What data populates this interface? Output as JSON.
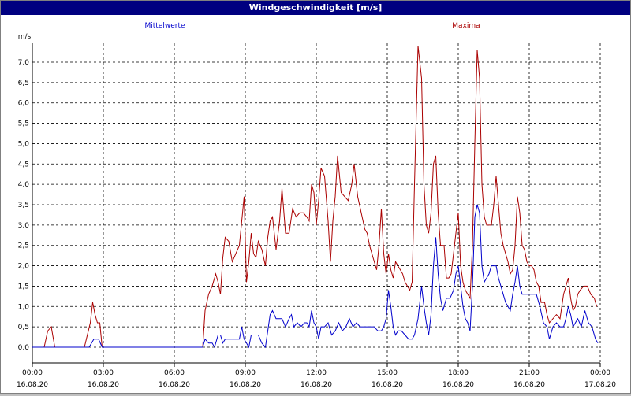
{
  "window": {
    "title": "Windgeschwindigkeit [m/s]"
  },
  "legend": {
    "mean_label": "Mittelwerte",
    "max_label": "Maxima"
  },
  "colors": {
    "mean": "#0000cc",
    "max": "#aa0000",
    "grid": "#000000",
    "title_bg": "#000080"
  },
  "chart_data": {
    "type": "line",
    "title": "Windgeschwindigkeit [m/s]",
    "ylabel": "m/s",
    "ylim": [
      0,
      7.5
    ],
    "xlim_hours": [
      0,
      24
    ],
    "grid": true,
    "legend_position": "top",
    "y_ticks": [
      "0,0",
      "0,5",
      "1,0",
      "1,5",
      "2,0",
      "2,5",
      "3,0",
      "3,5",
      "4,0",
      "4,5",
      "5,0",
      "5,5",
      "6,0",
      "6,5",
      "7,0"
    ],
    "x_ticks": [
      {
        "time": "00:00",
        "date": "16.08.20"
      },
      {
        "time": "03:00",
        "date": "16.08.20"
      },
      {
        "time": "06:00",
        "date": "16.08.20"
      },
      {
        "time": "09:00",
        "date": "16.08.20"
      },
      {
        "time": "12:00",
        "date": "16.08.20"
      },
      {
        "time": "15:00",
        "date": "16.08.20"
      },
      {
        "time": "18:00",
        "date": "16.08.20"
      },
      {
        "time": "21:00",
        "date": "16.08.20"
      },
      {
        "time": "00:00",
        "date": "17.08.20"
      }
    ],
    "series": [
      {
        "name": "Maxima",
        "color": "#aa0000",
        "points": [
          [
            0,
            0
          ],
          [
            0.5,
            0
          ],
          [
            0.65,
            0.4
          ],
          [
            0.8,
            0.5
          ],
          [
            0.95,
            0
          ],
          [
            2.2,
            0
          ],
          [
            2.45,
            0.6
          ],
          [
            2.55,
            1.1
          ],
          [
            2.65,
            0.8
          ],
          [
            2.75,
            0.6
          ],
          [
            2.85,
            0.6
          ],
          [
            2.95,
            0
          ],
          [
            7.2,
            0
          ],
          [
            7.3,
            0.9
          ],
          [
            7.45,
            1.3
          ],
          [
            7.6,
            1.5
          ],
          [
            7.75,
            1.8
          ],
          [
            7.85,
            1.6
          ],
          [
            7.95,
            1.3
          ],
          [
            8.05,
            2.2
          ],
          [
            8.15,
            2.7
          ],
          [
            8.3,
            2.6
          ],
          [
            8.45,
            2.1
          ],
          [
            8.6,
            2.3
          ],
          [
            8.75,
            2.5
          ],
          [
            8.85,
            3.1
          ],
          [
            8.95,
            3.7
          ],
          [
            9.05,
            1.6
          ],
          [
            9.15,
            2.1
          ],
          [
            9.25,
            2.8
          ],
          [
            9.35,
            2.3
          ],
          [
            9.45,
            2.2
          ],
          [
            9.55,
            2.6
          ],
          [
            9.7,
            2.4
          ],
          [
            9.85,
            2.0
          ],
          [
            9.95,
            2.7
          ],
          [
            10.05,
            3.1
          ],
          [
            10.15,
            3.2
          ],
          [
            10.3,
            2.4
          ],
          [
            10.45,
            3.1
          ],
          [
            10.55,
            3.9
          ],
          [
            10.7,
            2.8
          ],
          [
            10.85,
            2.8
          ],
          [
            11.0,
            3.4
          ],
          [
            11.15,
            3.2
          ],
          [
            11.3,
            3.3
          ],
          [
            11.45,
            3.3
          ],
          [
            11.6,
            3.2
          ],
          [
            11.7,
            3.1
          ],
          [
            11.8,
            4.0
          ],
          [
            11.9,
            3.8
          ],
          [
            12.0,
            3.0
          ],
          [
            12.1,
            3.6
          ],
          [
            12.2,
            4.4
          ],
          [
            12.35,
            4.2
          ],
          [
            12.5,
            3.1
          ],
          [
            12.6,
            2.1
          ],
          [
            12.7,
            3.1
          ],
          [
            12.8,
            3.7
          ],
          [
            12.9,
            4.7
          ],
          [
            13.05,
            3.8
          ],
          [
            13.2,
            3.7
          ],
          [
            13.35,
            3.6
          ],
          [
            13.5,
            4.0
          ],
          [
            13.6,
            4.5
          ],
          [
            13.75,
            3.7
          ],
          [
            13.9,
            3.3
          ],
          [
            14.05,
            2.9
          ],
          [
            14.15,
            2.8
          ],
          [
            14.25,
            2.5
          ],
          [
            14.35,
            2.3
          ],
          [
            14.45,
            2.1
          ],
          [
            14.55,
            1.9
          ],
          [
            14.65,
            2.5
          ],
          [
            14.75,
            3.4
          ],
          [
            14.85,
            2.3
          ],
          [
            14.95,
            1.8
          ],
          [
            15.05,
            2.3
          ],
          [
            15.15,
            1.9
          ],
          [
            15.25,
            1.7
          ],
          [
            15.35,
            2.1
          ],
          [
            15.45,
            2.0
          ],
          [
            15.55,
            1.9
          ],
          [
            15.65,
            1.8
          ],
          [
            15.75,
            1.6
          ],
          [
            15.85,
            1.5
          ],
          [
            15.95,
            1.4
          ],
          [
            16.05,
            1.6
          ],
          [
            16.15,
            4.0
          ],
          [
            16.3,
            7.4
          ],
          [
            16.45,
            6.6
          ],
          [
            16.55,
            4.0
          ],
          [
            16.65,
            3.0
          ],
          [
            16.75,
            2.8
          ],
          [
            16.85,
            3.3
          ],
          [
            16.95,
            4.5
          ],
          [
            17.05,
            4.7
          ],
          [
            17.15,
            3.3
          ],
          [
            17.25,
            2.5
          ],
          [
            17.4,
            2.5
          ],
          [
            17.5,
            1.7
          ],
          [
            17.6,
            1.7
          ],
          [
            17.7,
            1.8
          ],
          [
            17.8,
            2.3
          ],
          [
            17.9,
            2.8
          ],
          [
            18.0,
            3.3
          ],
          [
            18.1,
            2.0
          ],
          [
            18.2,
            1.6
          ],
          [
            18.3,
            1.4
          ],
          [
            18.4,
            1.3
          ],
          [
            18.5,
            1.2
          ],
          [
            18.6,
            2.5
          ],
          [
            18.7,
            5.0
          ],
          [
            18.8,
            7.3
          ],
          [
            18.9,
            6.6
          ],
          [
            19.0,
            4.0
          ],
          [
            19.1,
            3.2
          ],
          [
            19.2,
            3.0
          ],
          [
            19.3,
            3.0
          ],
          [
            19.4,
            3.0
          ],
          [
            19.5,
            3.5
          ],
          [
            19.6,
            4.2
          ],
          [
            19.7,
            3.5
          ],
          [
            19.8,
            2.8
          ],
          [
            19.9,
            2.5
          ],
          [
            20.0,
            2.3
          ],
          [
            20.1,
            2.1
          ],
          [
            20.2,
            1.8
          ],
          [
            20.3,
            1.9
          ],
          [
            20.4,
            2.5
          ],
          [
            20.5,
            3.7
          ],
          [
            20.6,
            3.3
          ],
          [
            20.7,
            2.5
          ],
          [
            20.8,
            2.4
          ],
          [
            20.9,
            2.1
          ],
          [
            21.0,
            2.0
          ],
          [
            21.1,
            2.0
          ],
          [
            21.2,
            1.9
          ],
          [
            21.3,
            1.6
          ],
          [
            21.4,
            1.5
          ],
          [
            21.5,
            1.1
          ],
          [
            21.65,
            1.1
          ],
          [
            21.75,
            0.8
          ],
          [
            21.85,
            0.6
          ],
          [
            22.0,
            0.7
          ],
          [
            22.15,
            0.8
          ],
          [
            22.3,
            0.7
          ],
          [
            22.45,
            1.3
          ],
          [
            22.55,
            1.5
          ],
          [
            22.65,
            1.7
          ],
          [
            22.75,
            1.2
          ],
          [
            22.85,
            0.9
          ],
          [
            22.95,
            1.0
          ],
          [
            23.05,
            1.3
          ],
          [
            23.15,
            1.4
          ],
          [
            23.3,
            1.5
          ],
          [
            23.45,
            1.5
          ],
          [
            23.6,
            1.3
          ],
          [
            23.75,
            1.2
          ],
          [
            23.85,
            1.0
          ]
        ]
      },
      {
        "name": "Mittelwerte",
        "color": "#0000cc",
        "points": [
          [
            0,
            0
          ],
          [
            2.4,
            0
          ],
          [
            2.6,
            0.2
          ],
          [
            2.8,
            0.2
          ],
          [
            2.95,
            0
          ],
          [
            7.2,
            0
          ],
          [
            7.3,
            0.2
          ],
          [
            7.45,
            0.1
          ],
          [
            7.6,
            0.1
          ],
          [
            7.7,
            0
          ],
          [
            7.85,
            0.3
          ],
          [
            7.95,
            0.3
          ],
          [
            8.05,
            0.1
          ],
          [
            8.15,
            0.2
          ],
          [
            8.3,
            0.2
          ],
          [
            8.45,
            0.2
          ],
          [
            8.6,
            0.2
          ],
          [
            8.75,
            0.2
          ],
          [
            8.85,
            0.5
          ],
          [
            8.95,
            0.2
          ],
          [
            9.05,
            0.1
          ],
          [
            9.15,
            0
          ],
          [
            9.25,
            0.3
          ],
          [
            9.4,
            0.3
          ],
          [
            9.55,
            0.3
          ],
          [
            9.7,
            0.1
          ],
          [
            9.85,
            0
          ],
          [
            9.95,
            0.4
          ],
          [
            10.05,
            0.8
          ],
          [
            10.15,
            0.9
          ],
          [
            10.3,
            0.7
          ],
          [
            10.45,
            0.7
          ],
          [
            10.55,
            0.7
          ],
          [
            10.7,
            0.5
          ],
          [
            10.85,
            0.7
          ],
          [
            10.95,
            0.8
          ],
          [
            11.05,
            0.5
          ],
          [
            11.2,
            0.6
          ],
          [
            11.35,
            0.5
          ],
          [
            11.5,
            0.6
          ],
          [
            11.6,
            0.6
          ],
          [
            11.7,
            0.5
          ],
          [
            11.8,
            0.9
          ],
          [
            11.9,
            0.6
          ],
          [
            12.0,
            0.5
          ],
          [
            12.1,
            0.2
          ],
          [
            12.2,
            0.5
          ],
          [
            12.35,
            0.5
          ],
          [
            12.5,
            0.6
          ],
          [
            12.65,
            0.3
          ],
          [
            12.8,
            0.4
          ],
          [
            12.95,
            0.6
          ],
          [
            13.1,
            0.4
          ],
          [
            13.25,
            0.5
          ],
          [
            13.4,
            0.7
          ],
          [
            13.55,
            0.5
          ],
          [
            13.7,
            0.6
          ],
          [
            13.85,
            0.5
          ],
          [
            14.0,
            0.5
          ],
          [
            14.15,
            0.5
          ],
          [
            14.3,
            0.5
          ],
          [
            14.45,
            0.5
          ],
          [
            14.6,
            0.4
          ],
          [
            14.75,
            0.4
          ],
          [
            14.85,
            0.5
          ],
          [
            14.95,
            0.7
          ],
          [
            15.05,
            1.4
          ],
          [
            15.15,
            1.0
          ],
          [
            15.25,
            0.5
          ],
          [
            15.35,
            0.3
          ],
          [
            15.45,
            0.4
          ],
          [
            15.6,
            0.4
          ],
          [
            15.75,
            0.3
          ],
          [
            15.9,
            0.2
          ],
          [
            16.05,
            0.2
          ],
          [
            16.15,
            0.3
          ],
          [
            16.3,
            0.7
          ],
          [
            16.45,
            1.5
          ],
          [
            16.55,
            1.0
          ],
          [
            16.65,
            0.6
          ],
          [
            16.75,
            0.3
          ],
          [
            16.85,
            0.8
          ],
          [
            16.95,
            2.0
          ],
          [
            17.05,
            2.7
          ],
          [
            17.15,
            1.8
          ],
          [
            17.25,
            1.2
          ],
          [
            17.35,
            0.9
          ],
          [
            17.5,
            1.2
          ],
          [
            17.65,
            1.2
          ],
          [
            17.8,
            1.4
          ],
          [
            17.9,
            1.8
          ],
          [
            18.0,
            2.0
          ],
          [
            18.1,
            1.5
          ],
          [
            18.2,
            1.0
          ],
          [
            18.3,
            0.7
          ],
          [
            18.4,
            0.6
          ],
          [
            18.5,
            0.4
          ],
          [
            18.6,
            1.5
          ],
          [
            18.7,
            3.2
          ],
          [
            18.8,
            3.5
          ],
          [
            18.9,
            3.3
          ],
          [
            19.0,
            2.0
          ],
          [
            19.1,
            1.6
          ],
          [
            19.2,
            1.7
          ],
          [
            19.3,
            1.8
          ],
          [
            19.4,
            2.0
          ],
          [
            19.5,
            2.0
          ],
          [
            19.6,
            2.0
          ],
          [
            19.7,
            1.7
          ],
          [
            19.8,
            1.5
          ],
          [
            19.9,
            1.3
          ],
          [
            20.0,
            1.1
          ],
          [
            20.1,
            1.0
          ],
          [
            20.2,
            0.9
          ],
          [
            20.3,
            1.3
          ],
          [
            20.4,
            1.6
          ],
          [
            20.5,
            2.0
          ],
          [
            20.6,
            1.5
          ],
          [
            20.7,
            1.3
          ],
          [
            20.85,
            1.3
          ],
          [
            21.0,
            1.3
          ],
          [
            21.15,
            1.3
          ],
          [
            21.3,
            1.3
          ],
          [
            21.45,
            1.0
          ],
          [
            21.6,
            0.6
          ],
          [
            21.75,
            0.5
          ],
          [
            21.85,
            0.2
          ],
          [
            22.0,
            0.5
          ],
          [
            22.15,
            0.6
          ],
          [
            22.3,
            0.5
          ],
          [
            22.45,
            0.5
          ],
          [
            22.55,
            0.7
          ],
          [
            22.65,
            1.0
          ],
          [
            22.75,
            0.8
          ],
          [
            22.85,
            0.5
          ],
          [
            22.95,
            0.6
          ],
          [
            23.05,
            0.7
          ],
          [
            23.2,
            0.5
          ],
          [
            23.35,
            0.9
          ],
          [
            23.5,
            0.6
          ],
          [
            23.65,
            0.5
          ],
          [
            23.8,
            0.2
          ],
          [
            23.9,
            0.1
          ]
        ]
      }
    ]
  }
}
